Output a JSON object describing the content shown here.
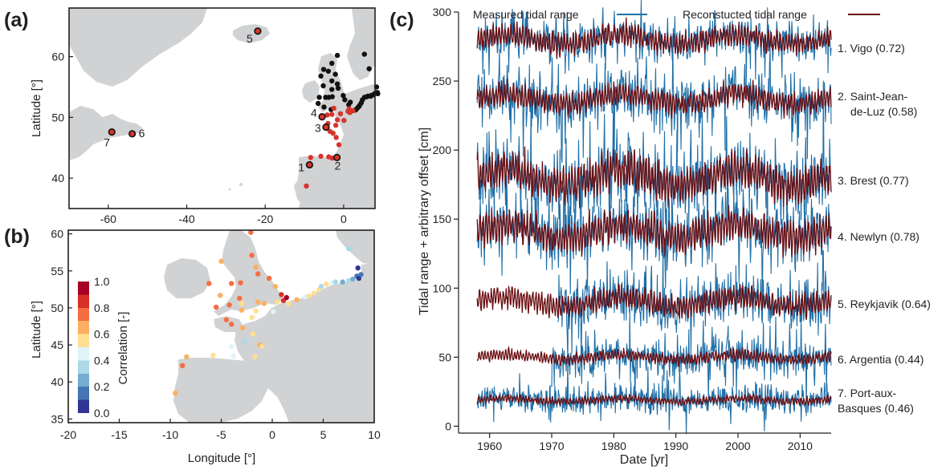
{
  "panel_labels": {
    "a": "(a)",
    "b": "(b)",
    "c": "(c)"
  },
  "colors": {
    "measured": "#1f6fa8",
    "reconstructed": "#6b0d10",
    "land": "#d1d2d3",
    "station_red": "#d7352b",
    "station_black": "#111111",
    "colorscale": [
      "#313695",
      "#4575b4",
      "#74add1",
      "#abd9e9",
      "#e0f3f8",
      "#fee090",
      "#fdae61",
      "#f46d43",
      "#d73027",
      "#a50026"
    ]
  },
  "chart_data": [
    {
      "id": "a",
      "type": "scatter",
      "title": "",
      "xlabel": "",
      "ylabel": "Latitude [°]",
      "xlim": [
        -70,
        8
      ],
      "ylim": [
        35,
        68
      ],
      "xticks": [
        "-60",
        "-40",
        "-20",
        "0"
      ],
      "yticks": [
        "40",
        "50",
        "60"
      ],
      "labeled_stations": [
        {
          "label": "1",
          "lon": -8.7,
          "lat": 42.2
        },
        {
          "label": "2",
          "lon": -1.7,
          "lat": 43.4
        },
        {
          "label": "3",
          "lon": -4.5,
          "lat": 48.4
        },
        {
          "label": "4",
          "lon": -5.5,
          "lat": 50.1
        },
        {
          "label": "5",
          "lon": -21.9,
          "lat": 64.2
        },
        {
          "label": "6",
          "lon": -53.9,
          "lat": 47.3
        },
        {
          "label": "7",
          "lon": -59.1,
          "lat": 47.6
        }
      ],
      "red_stations": [
        [
          -9.5,
          38.7
        ],
        [
          -8.4,
          43.4
        ],
        [
          -5.8,
          43.6
        ],
        [
          -3.8,
          43.5
        ],
        [
          -2.9,
          43.3
        ],
        [
          -1.2,
          45.5
        ],
        [
          -1.9,
          46.7
        ],
        [
          -3.5,
          47.7
        ],
        [
          -2.7,
          47.4
        ],
        [
          -4.0,
          49.0
        ],
        [
          -2.0,
          48.7
        ],
        [
          -1.6,
          49.6
        ],
        [
          0.1,
          49.5
        ],
        [
          -0.8,
          50.6
        ],
        [
          -3.0,
          50.5
        ],
        [
          -4.2,
          50.4
        ],
        [
          1.1,
          51.0
        ],
        [
          1.6,
          50.8
        ],
        [
          -2.5,
          51.5
        ],
        [
          2.4,
          51.1
        ],
        [
          1.4,
          51.4
        ]
      ],
      "black_stations": [
        [
          3.2,
          51.3
        ],
        [
          3.6,
          51.6
        ],
        [
          4.1,
          52.0
        ],
        [
          4.8,
          52.9
        ],
        [
          5.3,
          53.3
        ],
        [
          6.2,
          53.5
        ],
        [
          7.0,
          53.6
        ],
        [
          7.9,
          53.9
        ],
        [
          8.6,
          54.1
        ],
        [
          8.4,
          55.0
        ],
        [
          8.7,
          53.9
        ],
        [
          5.9,
          53.4
        ],
        [
          3.9,
          51.8
        ],
        [
          4.5,
          52.4
        ],
        [
          2.9,
          51.2
        ],
        [
          7.5,
          53.7
        ],
        [
          0.3,
          52.9
        ],
        [
          -0.1,
          53.6
        ],
        [
          -1.4,
          54.8
        ],
        [
          -1.6,
          55.5
        ],
        [
          -2.1,
          57.1
        ],
        [
          -3.0,
          56.0
        ],
        [
          -3.9,
          57.6
        ],
        [
          -1.6,
          60.2
        ],
        [
          -3.0,
          58.9
        ],
        [
          -5.1,
          57.9
        ],
        [
          -5.8,
          56.8
        ],
        [
          -5.2,
          55.2
        ],
        [
          -3.0,
          54.6
        ],
        [
          -2.9,
          53.4
        ],
        [
          -3.8,
          53.3
        ],
        [
          -4.6,
          53.3
        ],
        [
          -6.2,
          53.3
        ],
        [
          -6.5,
          52.3
        ],
        [
          -5.0,
          51.7
        ],
        [
          -3.2,
          51.3
        ],
        [
          6.5,
          58.0
        ],
        [
          5.3,
          60.4
        ],
        [
          1.3,
          52.1
        ],
        [
          1.7,
          52.5
        ],
        [
          6.9,
          53.5
        ]
      ]
    },
    {
      "id": "b",
      "type": "scatter",
      "title": "",
      "xlabel": "Longitude [°]",
      "ylabel": "Latitude [°]",
      "xlim": [
        -20,
        10
      ],
      "ylim": [
        34.5,
        60.5
      ],
      "xticks": [
        "-20",
        "-15",
        "-10",
        "-5",
        "0",
        "5",
        "10"
      ],
      "yticks": [
        "35",
        "40",
        "45",
        "50",
        "55",
        "60"
      ],
      "colorbar_label": "Correlation [-]",
      "colorbar_ticks": [
        "0.0",
        "0.2",
        "0.4",
        "0.6",
        "0.8",
        "1.0"
      ],
      "stations": [
        {
          "lon": -9.5,
          "lat": 38.5,
          "r": 0.6
        },
        {
          "lon": -8.8,
          "lat": 42.2,
          "r": 0.72
        },
        {
          "lon": -8.4,
          "lat": 43.4,
          "r": 0.68
        },
        {
          "lon": -5.8,
          "lat": 43.6,
          "r": 0.5
        },
        {
          "lon": -3.8,
          "lat": 43.5,
          "r": 0.45
        },
        {
          "lon": -1.7,
          "lat": 43.4,
          "r": 0.58
        },
        {
          "lon": -1.2,
          "lat": 45.0,
          "r": 0.65
        },
        {
          "lon": -1.9,
          "lat": 46.5,
          "r": 0.5
        },
        {
          "lon": -2.9,
          "lat": 47.3,
          "r": 0.6
        },
        {
          "lon": -4.5,
          "lat": 48.4,
          "r": 0.77
        },
        {
          "lon": -4.0,
          "lat": 47.8,
          "r": 0.7
        },
        {
          "lon": -5.5,
          "lat": 50.1,
          "r": 0.78
        },
        {
          "lon": -4.2,
          "lat": 50.4,
          "r": 0.7
        },
        {
          "lon": -3.0,
          "lat": 49.7,
          "r": 0.62
        },
        {
          "lon": -2.0,
          "lat": 48.7,
          "r": 0.58
        },
        {
          "lon": -1.6,
          "lat": 49.6,
          "r": 0.5
        },
        {
          "lon": 0.1,
          "lat": 49.5,
          "r": 0.45
        },
        {
          "lon": -0.8,
          "lat": 50.6,
          "r": 0.6
        },
        {
          "lon": -3.0,
          "lat": 50.6,
          "r": 0.55
        },
        {
          "lon": -1.4,
          "lat": 50.8,
          "r": 0.62
        },
        {
          "lon": 0.5,
          "lat": 50.8,
          "r": 0.52
        },
        {
          "lon": 1.1,
          "lat": 51.0,
          "r": 0.85
        },
        {
          "lon": 1.6,
          "lat": 50.6,
          "r": 0.55
        },
        {
          "lon": 2.4,
          "lat": 51.1,
          "r": 0.6
        },
        {
          "lon": 1.4,
          "lat": 51.4,
          "r": 0.9
        },
        {
          "lon": 0.9,
          "lat": 51.8,
          "r": 0.82
        },
        {
          "lon": 3.2,
          "lat": 51.5,
          "r": 0.45
        },
        {
          "lon": 3.6,
          "lat": 51.6,
          "r": 0.52
        },
        {
          "lon": 4.1,
          "lat": 52.0,
          "r": 0.5
        },
        {
          "lon": 4.6,
          "lat": 52.5,
          "r": 0.55
        },
        {
          "lon": 4.8,
          "lat": 52.9,
          "r": 0.35
        },
        {
          "lon": 5.3,
          "lat": 53.2,
          "r": 0.58
        },
        {
          "lon": 5.9,
          "lat": 53.4,
          "r": 0.42
        },
        {
          "lon": 6.2,
          "lat": 53.5,
          "r": 0.3
        },
        {
          "lon": 6.9,
          "lat": 53.5,
          "r": 0.28
        },
        {
          "lon": 7.5,
          "lat": 53.7,
          "r": 0.3
        },
        {
          "lon": 7.9,
          "lat": 53.9,
          "r": 0.25
        },
        {
          "lon": 8.3,
          "lat": 54.3,
          "r": 0.1
        },
        {
          "lon": 8.5,
          "lat": 54.0,
          "r": 0.05
        },
        {
          "lon": 8.7,
          "lat": 54.5,
          "r": 0.12
        },
        {
          "lon": 8.4,
          "lat": 55.4,
          "r": 0.08
        },
        {
          "lon": 7.5,
          "lat": 58.0,
          "r": 0.35
        },
        {
          "lon": -2.0,
          "lat": 57.1,
          "r": 0.72
        },
        {
          "lon": -1.6,
          "lat": 55.5,
          "r": 0.68
        },
        {
          "lon": -1.4,
          "lat": 54.6,
          "r": 0.75
        },
        {
          "lon": -0.3,
          "lat": 54.0,
          "r": 0.72
        },
        {
          "lon": -3.1,
          "lat": 53.4,
          "r": 0.72
        },
        {
          "lon": -4.0,
          "lat": 53.3,
          "r": 0.7
        },
        {
          "lon": -6.2,
          "lat": 53.3,
          "r": 0.7
        },
        {
          "lon": -5.1,
          "lat": 51.7,
          "r": 0.68
        },
        {
          "lon": -3.2,
          "lat": 51.3,
          "r": 0.72
        },
        {
          "lon": -2.1,
          "lat": 60.2,
          "r": 0.7
        },
        {
          "lon": -5.0,
          "lat": 56.3,
          "r": 0.66
        },
        {
          "lon": -4.0,
          "lat": 44.8,
          "r": 0.4
        },
        {
          "lon": -2.7,
          "lat": 45.5,
          "r": 0.3
        },
        {
          "lon": -1.0,
          "lat": 44.8,
          "r": 0.52
        },
        {
          "lon": 0.3,
          "lat": 52.9,
          "r": 0.62
        }
      ]
    },
    {
      "id": "c",
      "type": "line",
      "title": "",
      "xlabel": "Date [yr]",
      "ylabel": "Tidal range + arbitrary offset [cm]",
      "xlim": [
        1955,
        2015
      ],
      "ylim": [
        -5,
        300
      ],
      "xticks": [
        "1960",
        "1970",
        "1980",
        "1990",
        "2000",
        "2010"
      ],
      "yticks": [
        "0",
        "50",
        "100",
        "150",
        "200",
        "250",
        "300"
      ],
      "legend": {
        "measured": "Measured tidal range",
        "reconstructed": "Reconstucted tidal range",
        "placement": "top"
      },
      "series": [
        {
          "label": "1. Vigo (0.72)",
          "offset": 280,
          "start": 1958,
          "end": 2015,
          "measured_start": 1958,
          "amp": 6,
          "noise": 7
        },
        {
          "label": "2. Saint-Jean-de-Luz (0.58)",
          "offset": 237,
          "start": 1958,
          "end": 2015,
          "measured_start": 1958,
          "amp": 6,
          "noise": 10
        },
        {
          "label": "3. Brest (0.77)",
          "offset": 180,
          "start": 1958,
          "end": 2015,
          "measured_start": 1958,
          "amp": 10,
          "noise": 12
        },
        {
          "label": "4. Newlyn (0.78)",
          "offset": 141,
          "start": 1958,
          "end": 2015,
          "measured_start": 1958,
          "amp": 9,
          "noise": 10
        },
        {
          "label": "5. Reykjavik (0.64)",
          "offset": 90,
          "start": 1958,
          "end": 2015,
          "measured_start": 1971,
          "amp": 6,
          "noise": 10
        },
        {
          "label": "6. Argentia (0.44)",
          "offset": 50,
          "start": 1958,
          "end": 2015,
          "measured_start": 1970,
          "amp": 3,
          "noise": 8
        },
        {
          "label": "7. Port-aux-Basques (0.46)",
          "offset": 19,
          "start": 1958,
          "end": 2015,
          "measured_start": 1958,
          "amp": 2,
          "noise": 6
        }
      ],
      "series_labels": {
        "vigo": "1. Vigo (0.72)",
        "sjdl_1": "2. Saint-Jean-",
        "sjdl_2": "de-Luz (0.58)",
        "brest": "3. Brest (0.77)",
        "newlyn": "4. Newlyn (0.78)",
        "reykjavik": "5. Reykjavik (0.64)",
        "argentia": "6. Argentia (0.44)",
        "pab_1": "7. Port-aux-",
        "pab_2": "Basques (0.46)"
      }
    }
  ]
}
